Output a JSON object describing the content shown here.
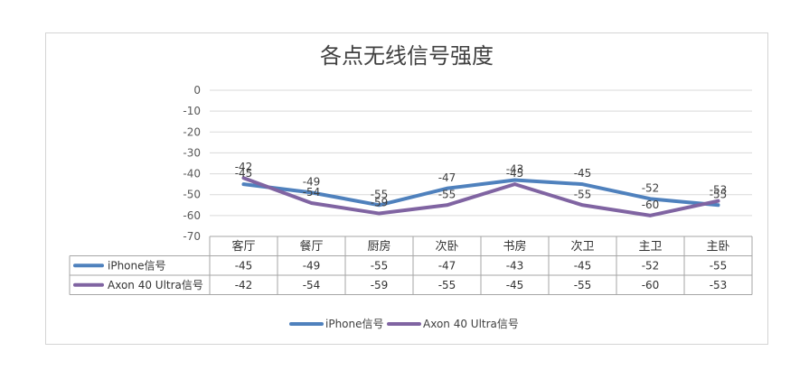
{
  "chart_data": {
    "type": "line",
    "title": "各点无线信号强度",
    "categories": [
      "客厅",
      "餐厅",
      "厨房",
      "次卧",
      "书房",
      "次卫",
      "主卫",
      "主卧"
    ],
    "series": [
      {
        "name": "iPhone信号",
        "color": "#4f81bd",
        "values": [
          -45,
          -49,
          -55,
          -47,
          -43,
          -45,
          -52,
          -55
        ]
      },
      {
        "name": "Axon 40 Ultra信号",
        "color": "#8064a2",
        "values": [
          -42,
          -54,
          -59,
          -55,
          -45,
          -55,
          -60,
          -53
        ]
      }
    ],
    "ylim": [
      -70,
      0
    ],
    "yticks": [
      0,
      -10,
      -20,
      -30,
      -40,
      -50,
      -60,
      -70
    ],
    "grid": true,
    "data_labels": true,
    "data_table": true,
    "legend": "bottom"
  }
}
